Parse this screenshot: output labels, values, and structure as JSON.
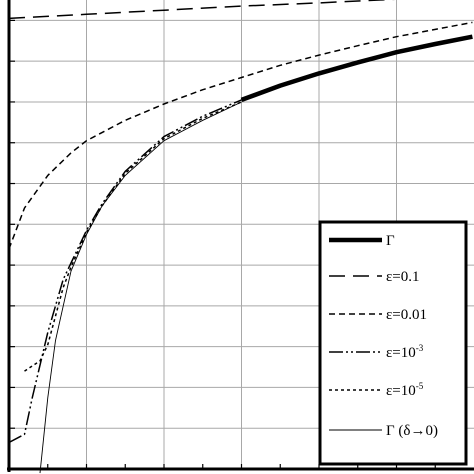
{
  "chart_data": {
    "type": "line",
    "title": "",
    "xlabel": "",
    "ylabel": "",
    "xlim": [
      0,
      6
    ],
    "ylim": [
      0,
      11.5
    ],
    "grid": true,
    "legend_position": "bottom-right",
    "series": [
      {
        "name": "Γ",
        "name_sup": "",
        "style": "thick-solid",
        "x": [
          3.0,
          3.5,
          4.0,
          4.5,
          5.0,
          5.5,
          5.98
        ],
        "y": [
          9.05,
          9.4,
          9.7,
          9.97,
          10.22,
          10.42,
          10.6
        ]
      },
      {
        "name": "ε=0.1",
        "name_sup": "",
        "style": "long-dash",
        "x": [
          0.0,
          1.0,
          2.0,
          3.0,
          4.0,
          5.0,
          5.75
        ],
        "y": [
          11.05,
          11.15,
          11.25,
          11.35,
          11.43,
          11.52,
          11.58
        ]
      },
      {
        "name": "ε=0.01",
        "name_sup": "",
        "style": "short-dash",
        "x": [
          0.0,
          0.2,
          0.5,
          0.8,
          1.0,
          1.5,
          2.0,
          2.5,
          3.0,
          3.5,
          4.0,
          4.5,
          5.0,
          5.5,
          5.98
        ],
        "y": [
          5.4,
          6.4,
          7.2,
          7.75,
          8.05,
          8.55,
          8.95,
          9.3,
          9.6,
          9.9,
          10.15,
          10.38,
          10.6,
          10.78,
          10.95
        ]
      },
      {
        "name": "ε=10",
        "name_sup": "-3",
        "style": "dash-dot-dot",
        "x": [
          0.0,
          0.2,
          0.3,
          0.5,
          0.7,
          0.8,
          1.0,
          1.2,
          1.5,
          2.0,
          2.5,
          3.0
        ],
        "y": [
          0.65,
          0.85,
          1.75,
          3.35,
          4.65,
          5.05,
          5.85,
          6.5,
          7.3,
          8.15,
          8.65,
          9.05
        ]
      },
      {
        "name": "ε=10",
        "name_sup": "-5",
        "style": "dotted",
        "x": [
          0.2,
          0.4,
          0.5,
          0.7,
          0.8,
          1.0,
          1.2,
          1.5,
          2.0,
          2.5,
          3.0
        ],
        "y": [
          2.4,
          2.65,
          3.05,
          4.45,
          4.95,
          5.8,
          6.45,
          7.25,
          8.1,
          8.6,
          9.0
        ]
      },
      {
        "name": "Γ (δ→0)",
        "name_sup": "",
        "style": "thin-solid",
        "x": [
          0.4,
          0.5,
          0.6,
          0.8,
          1.0,
          1.2,
          1.5,
          2.0,
          2.5,
          3.0
        ],
        "y": [
          -0.1,
          1.75,
          3.15,
          4.85,
          5.75,
          6.45,
          7.2,
          8.05,
          8.55,
          9.0
        ]
      }
    ]
  }
}
